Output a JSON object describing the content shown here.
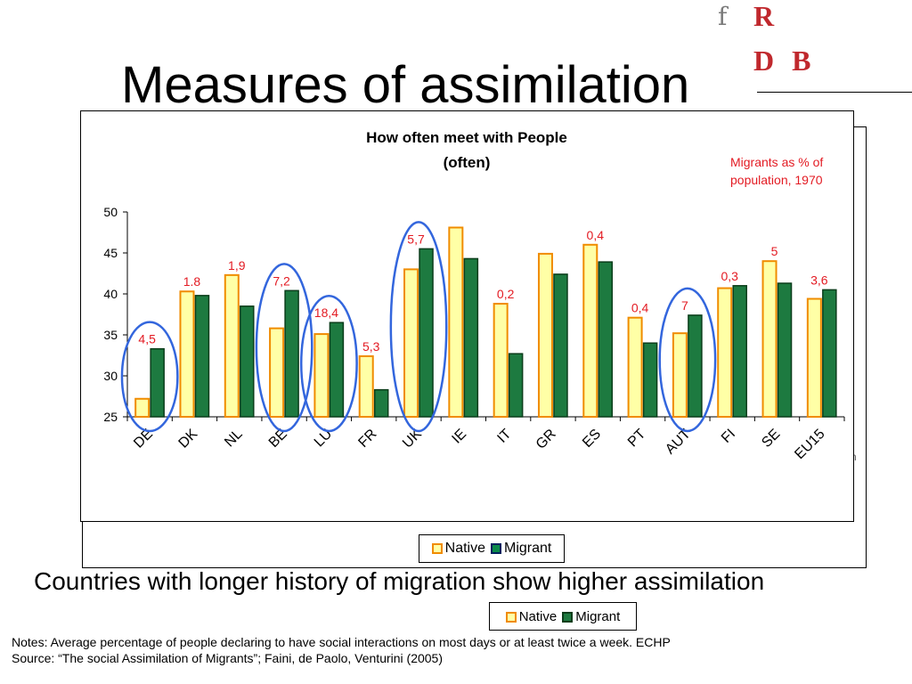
{
  "slide": {
    "title": "Measures of assimilation",
    "caption": "Countries with longer history of migration show higher assimilation",
    "notes_line1": "Notes: Average percentage of people declaring to have social interactions on most days or at least twice a week. ECHP",
    "notes_line2": "Source: “The social Assimilation of Migrants”; Faini, de Paolo, Venturini (2005)",
    "ghost_letter": "n"
  },
  "logo": {
    "f": "f",
    "r": "R",
    "db": "D B"
  },
  "annotation": {
    "text": "Migrants as % of population, 1970"
  },
  "colors": {
    "native_fill": "#ffffa6",
    "native_stroke": "#f08c00",
    "migrant_fill": "#1d7a40",
    "migrant_stroke": "#0a3d1a",
    "circle": "#3366dd",
    "label_red": "#e31b23"
  },
  "chart_data": {
    "type": "bar",
    "title": "How often meet with People",
    "subtitle": "(often)",
    "categories": [
      "DE",
      "DK",
      "NL",
      "BE",
      "LU",
      "FR",
      "UK",
      "IE",
      "IT",
      "GR",
      "ES",
      "PT",
      "AUT",
      "FI",
      "SE",
      "EU15"
    ],
    "series": [
      {
        "name": "Native",
        "values": [
          27.2,
          40.3,
          42.3,
          35.8,
          35.1,
          32.4,
          43.0,
          48.1,
          38.8,
          44.9,
          46.0,
          37.1,
          35.2,
          40.7,
          44.0,
          39.4
        ]
      },
      {
        "name": "Migrant",
        "values": [
          33.3,
          39.8,
          38.5,
          40.4,
          36.5,
          28.3,
          45.5,
          44.3,
          32.7,
          42.4,
          43.9,
          34.0,
          37.4,
          41.0,
          41.3,
          40.5
        ]
      }
    ],
    "migrant_share_labels": [
      "4,5",
      "1.8",
      "1,9",
      "7,2",
      "18,4",
      "5,3",
      "5,7",
      "",
      "0,2",
      "",
      "0,4",
      "0,4",
      "7",
      "0,3",
      "5",
      "3,6"
    ],
    "circled": [
      "DE",
      "BE",
      "LU",
      "UK",
      "AUT"
    ],
    "ylim": [
      25,
      50
    ],
    "yticks": [
      25,
      30,
      35,
      40,
      45,
      50
    ],
    "xlabel": "",
    "ylabel": "",
    "legend_position": "bottom",
    "grid": false
  }
}
